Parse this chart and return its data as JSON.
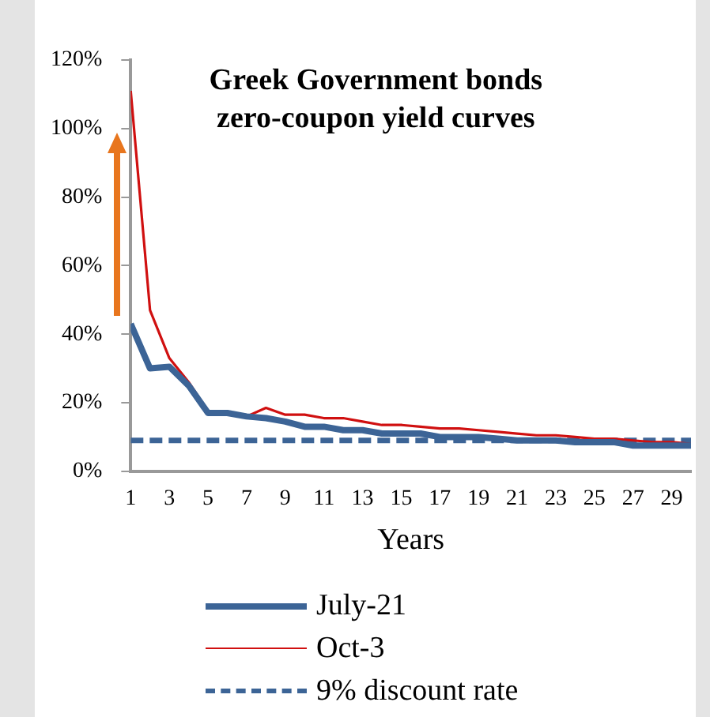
{
  "chart_data": {
    "type": "line",
    "title": "Greek Government bonds\nzero-coupon yield curves",
    "xlabel": "Years",
    "x": [
      1,
      2,
      3,
      4,
      5,
      6,
      7,
      8,
      9,
      10,
      11,
      12,
      13,
      14,
      15,
      16,
      17,
      18,
      19,
      20,
      21,
      22,
      23,
      24,
      25,
      26,
      27,
      28,
      29,
      30
    ],
    "series": [
      {
        "name": "July-21",
        "color": "#3c6496",
        "line_style": "solid",
        "values": [
          43,
          30,
          30.5,
          25,
          17,
          17,
          16,
          15.5,
          14.5,
          13,
          13,
          12,
          12,
          11,
          11,
          11,
          10,
          10,
          10,
          9.5,
          9,
          9,
          9,
          8.5,
          8.5,
          8.5,
          7.5,
          7.5,
          7.5,
          7.5
        ]
      },
      {
        "name": "Oct-3",
        "color": "#d01010",
        "line_style": "solid",
        "values": [
          111,
          47,
          33,
          26,
          17.5,
          17,
          16,
          18.5,
          16.5,
          16.5,
          15.5,
          15.5,
          14.5,
          13.5,
          13.5,
          13,
          12.5,
          12.5,
          12,
          11.5,
          11,
          10.5,
          10.5,
          10,
          9.5,
          9.5,
          9,
          8.5,
          8.5,
          8
        ]
      },
      {
        "name": "9% discount rate",
        "color": "#3c6496",
        "line_style": "dashed",
        "values": [
          9,
          9,
          9,
          9,
          9,
          9,
          9,
          9,
          9,
          9,
          9,
          9,
          9,
          9,
          9,
          9,
          9,
          9,
          9,
          9,
          9,
          9,
          9,
          9,
          9,
          9,
          9,
          9,
          9,
          9
        ]
      }
    ],
    "xlim": [
      1,
      30
    ],
    "xticks": [
      1,
      3,
      5,
      7,
      9,
      11,
      13,
      15,
      17,
      19,
      21,
      23,
      25,
      27,
      29
    ],
    "ylim": [
      0,
      120
    ],
    "yticks": [
      {
        "value": 0,
        "label": "0%"
      },
      {
        "value": 20,
        "label": "20%"
      },
      {
        "value": 40,
        "label": "40%"
      },
      {
        "value": 60,
        "label": "60%"
      },
      {
        "value": 80,
        "label": "80%"
      },
      {
        "value": 100,
        "label": "100%"
      },
      {
        "value": 120,
        "label": "120%"
      }
    ],
    "legend": "bottom",
    "marker": "none"
  }
}
